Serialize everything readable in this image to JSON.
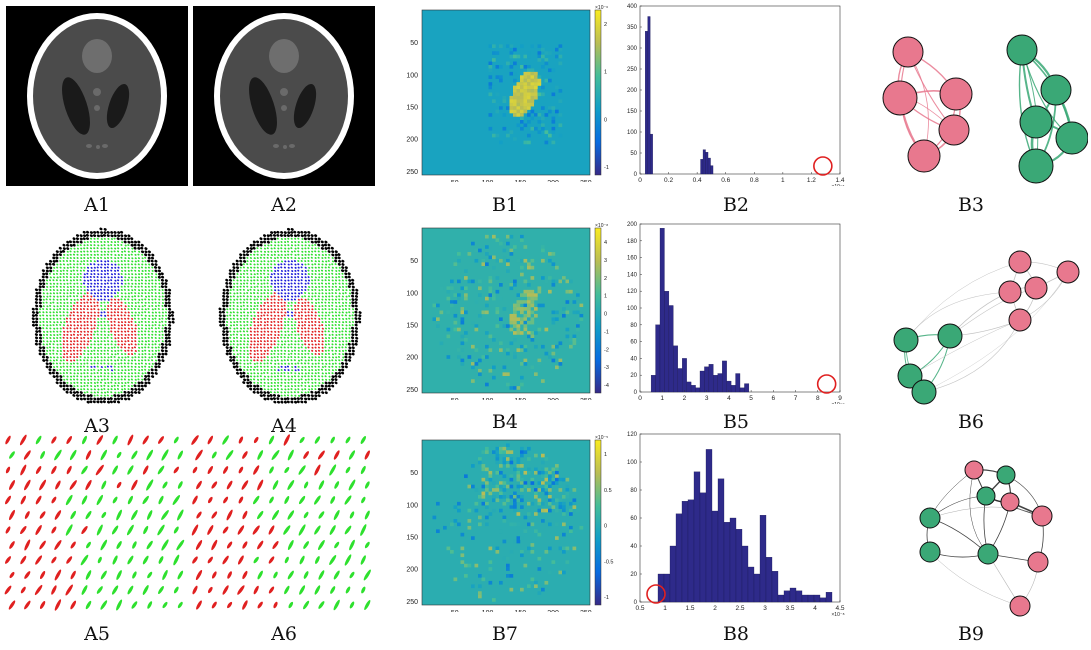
{
  "labels": {
    "a1": "A1",
    "a2": "A2",
    "a3": "A3",
    "a4": "A4",
    "a5": "A5",
    "a6": "A6",
    "b1": "B1",
    "b2": "B2",
    "b3": "B3",
    "b4": "B4",
    "b5": "B5",
    "b6": "B6",
    "b7": "B7",
    "b8": "B8",
    "b9": "B9"
  },
  "heatmaps": {
    "b1": {
      "y_ticks": [
        "50",
        "100",
        "150",
        "200",
        "250"
      ],
      "x_ticks": [
        "50",
        "100",
        "150",
        "200",
        "250"
      ],
      "colorbar_exp": "×10⁻⁶",
      "colorbar_ticks": [
        "2",
        "1",
        "0",
        "-1"
      ]
    },
    "b4": {
      "y_ticks": [
        "50",
        "100",
        "150",
        "200",
        "250"
      ],
      "x_ticks": [
        "50",
        "100",
        "150",
        "200",
        "250"
      ],
      "colorbar_exp": "×10⁻⁸",
      "colorbar_ticks": [
        "4",
        "3",
        "2",
        "1",
        "0",
        "-1",
        "-2",
        "-3",
        "-4"
      ]
    },
    "b7": {
      "y_ticks": [
        "50",
        "100",
        "150",
        "200",
        "250"
      ],
      "x_ticks": [
        "50",
        "100",
        "150",
        "200",
        "250"
      ],
      "colorbar_exp": "×10⁻⁵",
      "colorbar_ticks": [
        "1",
        "0.5",
        "0",
        "-0.5",
        "-1"
      ]
    }
  },
  "chart_data": [
    {
      "id": "b2",
      "type": "bar",
      "xlim": [
        0,
        1.4
      ],
      "ylim": [
        0,
        400
      ],
      "x_ticks": [
        "0",
        "0.2",
        "0.4",
        "0.6",
        "0.8",
        "1",
        "1.2",
        "1.4"
      ],
      "y_ticks": [
        "0",
        "50",
        "100",
        "150",
        "200",
        "250",
        "300",
        "350",
        "400"
      ],
      "x_exp": "×10⁻⁶",
      "bin_width": 0.0175,
      "bins": [
        {
          "x": 0.045,
          "v": 340
        },
        {
          "x": 0.0625,
          "v": 375
        },
        {
          "x": 0.08,
          "v": 95
        },
        {
          "x": 0.4325,
          "v": 35
        },
        {
          "x": 0.45,
          "v": 58
        },
        {
          "x": 0.4675,
          "v": 52
        },
        {
          "x": 0.485,
          "v": 38
        },
        {
          "x": 0.5025,
          "v": 20
        }
      ],
      "highlight_x": 1.28
    },
    {
      "id": "b5",
      "type": "bar",
      "xlim": [
        0,
        9
      ],
      "ylim": [
        0,
        200
      ],
      "x_ticks": [
        "0",
        "1",
        "2",
        "3",
        "4",
        "5",
        "6",
        "7",
        "8",
        "9"
      ],
      "y_ticks": [
        "0",
        "20",
        "40",
        "60",
        "80",
        "100",
        "120",
        "140",
        "160",
        "180",
        "200"
      ],
      "x_exp": "×10⁻⁹",
      "bin_width": 0.2,
      "bins": [
        {
          "x": 0.6,
          "v": 20
        },
        {
          "x": 0.8,
          "v": 80
        },
        {
          "x": 1.0,
          "v": 195
        },
        {
          "x": 1.2,
          "v": 120
        },
        {
          "x": 1.4,
          "v": 103
        },
        {
          "x": 1.6,
          "v": 55
        },
        {
          "x": 1.8,
          "v": 28
        },
        {
          "x": 2.0,
          "v": 40
        },
        {
          "x": 2.2,
          "v": 12
        },
        {
          "x": 2.4,
          "v": 8
        },
        {
          "x": 2.6,
          "v": 5
        },
        {
          "x": 2.8,
          "v": 25
        },
        {
          "x": 3.0,
          "v": 30
        },
        {
          "x": 3.2,
          "v": 33
        },
        {
          "x": 3.4,
          "v": 20
        },
        {
          "x": 3.6,
          "v": 22
        },
        {
          "x": 3.8,
          "v": 37
        },
        {
          "x": 4.0,
          "v": 13
        },
        {
          "x": 4.2,
          "v": 8
        },
        {
          "x": 4.4,
          "v": 22
        },
        {
          "x": 4.6,
          "v": 5
        },
        {
          "x": 4.8,
          "v": 10
        }
      ],
      "highlight_x": 8.4
    },
    {
      "id": "b8",
      "type": "bar",
      "xlim": [
        0.5,
        4.5
      ],
      "ylim": [
        0,
        120
      ],
      "x_ticks": [
        "0.5",
        "1",
        "1.5",
        "2",
        "2.5",
        "3",
        "3.5",
        "4",
        "4.5"
      ],
      "y_ticks": [
        "0",
        "20",
        "40",
        "60",
        "80",
        "100",
        "120"
      ],
      "x_exp": "×10⁻⁸",
      "bin_width": 0.12,
      "bins": [
        {
          "x": 0.92,
          "v": 20
        },
        {
          "x": 1.04,
          "v": 20
        },
        {
          "x": 1.16,
          "v": 40
        },
        {
          "x": 1.28,
          "v": 63
        },
        {
          "x": 1.4,
          "v": 72
        },
        {
          "x": 1.52,
          "v": 73
        },
        {
          "x": 1.64,
          "v": 93
        },
        {
          "x": 1.76,
          "v": 78
        },
        {
          "x": 1.88,
          "v": 109
        },
        {
          "x": 2.0,
          "v": 65
        },
        {
          "x": 2.12,
          "v": 88
        },
        {
          "x": 2.24,
          "v": 57
        },
        {
          "x": 2.36,
          "v": 60
        },
        {
          "x": 2.48,
          "v": 52
        },
        {
          "x": 2.6,
          "v": 40
        },
        {
          "x": 2.72,
          "v": 25
        },
        {
          "x": 2.84,
          "v": 20
        },
        {
          "x": 2.96,
          "v": 62
        },
        {
          "x": 3.08,
          "v": 32
        },
        {
          "x": 3.2,
          "v": 22
        },
        {
          "x": 3.32,
          "v": 5
        },
        {
          "x": 3.44,
          "v": 8
        },
        {
          "x": 3.56,
          "v": 10
        },
        {
          "x": 3.68,
          "v": 8
        },
        {
          "x": 3.8,
          "v": 5
        },
        {
          "x": 3.92,
          "v": 5
        },
        {
          "x": 4.04,
          "v": 5
        },
        {
          "x": 4.16,
          "v": 3
        },
        {
          "x": 4.28,
          "v": 7
        }
      ],
      "highlight_x": 0.82
    }
  ],
  "colors": {
    "pink": "#e8788e",
    "green": "#3aa876",
    "navy": "#2e2a8a",
    "circle": "#e02020",
    "seg_green": "#2ee02e",
    "seg_red": "#e02020",
    "seg_blue": "#1c1cd8"
  }
}
